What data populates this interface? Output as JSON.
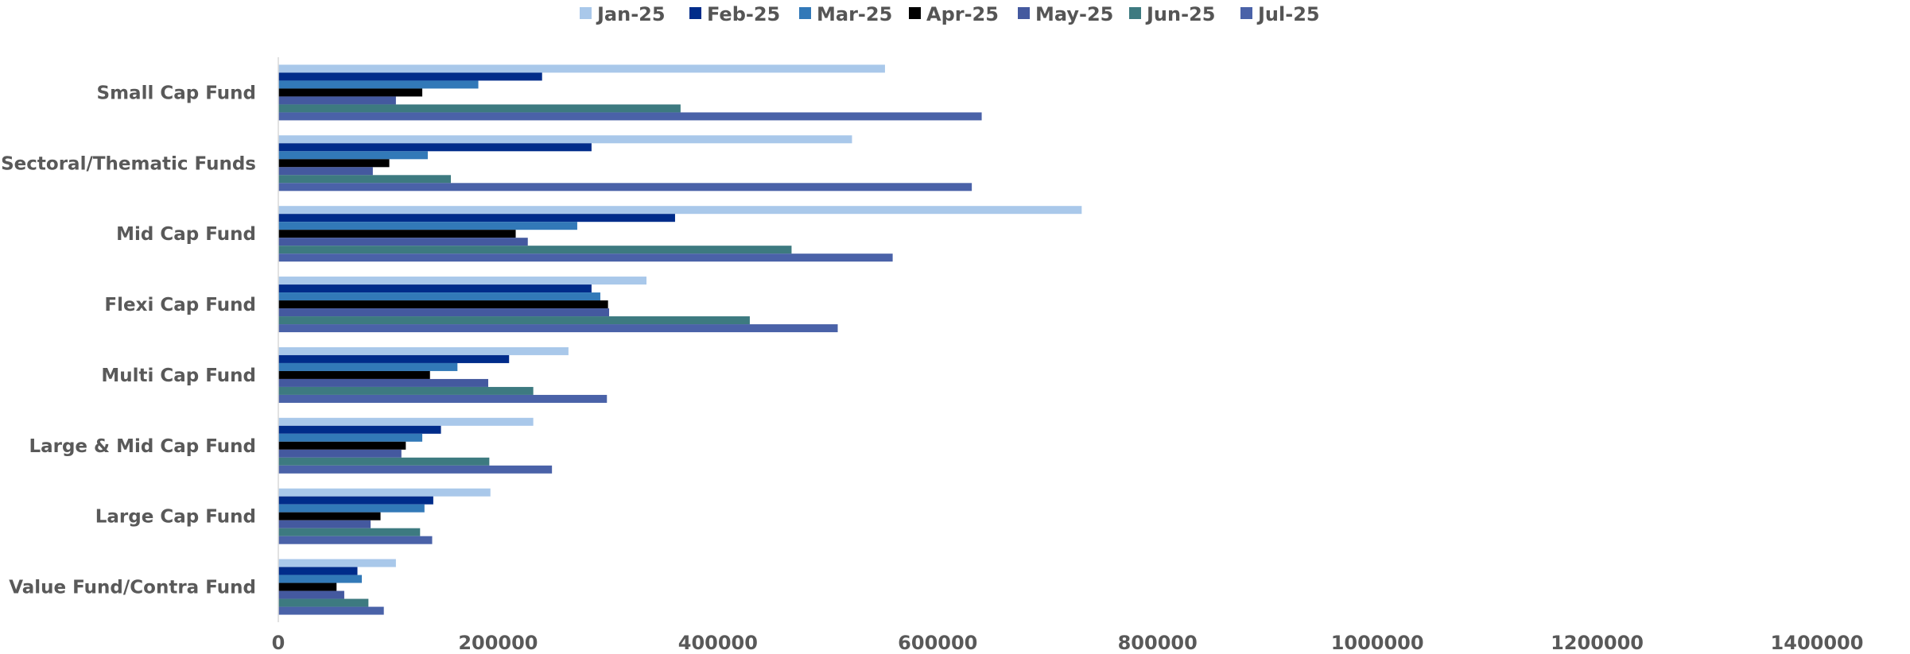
{
  "chart_data": {
    "type": "bar",
    "orientation": "horizontal",
    "title": "",
    "xlabel": "",
    "ylabel": "",
    "xlim": [
      0,
      1400000
    ],
    "x_ticks": [
      "0",
      "200000",
      "400000",
      "600000",
      "800000",
      "1000000",
      "1200000",
      "1400000"
    ],
    "grid": false,
    "legend_position": "top",
    "categories": [
      "Small Cap Fund",
      "Sectoral/Thematic Funds",
      "Mid Cap Fund",
      "Flexi Cap Fund",
      "Multi Cap Fund",
      "Large & Mid Cap Fund",
      "Large Cap Fund",
      "Value Fund/Contra Fund"
    ],
    "series": [
      {
        "name": "Jan-25",
        "color": "#A9C8EA",
        "values": [
          552000,
          522000,
          731000,
          335000,
          264000,
          232000,
          193000,
          107000
        ]
      },
      {
        "name": "Feb-25",
        "color": "#002C8A",
        "values": [
          240000,
          285000,
          361000,
          285000,
          210000,
          148000,
          141000,
          72000
        ]
      },
      {
        "name": "Mar-25",
        "color": "#3279B8",
        "values": [
          182000,
          136000,
          272000,
          293000,
          163000,
          131000,
          133000,
          76000
        ]
      },
      {
        "name": "Apr-25",
        "color": "#000000",
        "values": [
          131000,
          101000,
          216000,
          300000,
          138000,
          116000,
          93000,
          53000
        ]
      },
      {
        "name": "May-25",
        "color": "#44599F",
        "values": [
          107000,
          86000,
          227000,
          301000,
          191000,
          112000,
          84000,
          60000
        ]
      },
      {
        "name": "Jun-25",
        "color": "#3D7A80",
        "values": [
          366000,
          157000,
          467000,
          429000,
          232000,
          192000,
          129000,
          82000
        ]
      },
      {
        "name": "Jul-25",
        "color": "#4A62A8",
        "values": [
          640000,
          631000,
          559000,
          509000,
          299000,
          249000,
          140000,
          96000
        ]
      }
    ]
  }
}
